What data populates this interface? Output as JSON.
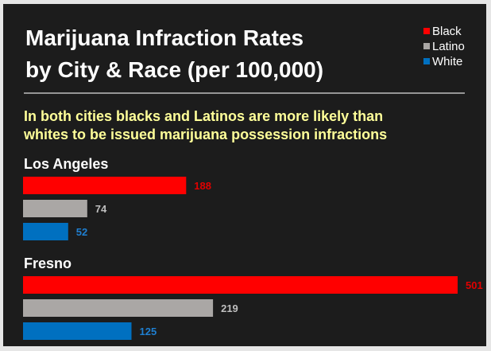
{
  "colors": {
    "background": "#1c1c1c",
    "frame": "#e6e6e6",
    "title": "#ffffff",
    "subtitle": "#ffff99",
    "divider": "#bfbfbf"
  },
  "chart_data": {
    "type": "bar",
    "orientation": "horizontal",
    "title_lines": [
      "Marijuana Infraction Rates",
      "by City & Race (per 100,000)"
    ],
    "subtitle_lines": [
      "In both cities blacks and Latinos are more likely than",
      "whites to be issued marijuana possession infractions"
    ],
    "legend": {
      "placement": "top-right",
      "entries": [
        {
          "name": "Black",
          "color": "#ff0000"
        },
        {
          "name": "Latino",
          "color": "#aaa7a5"
        },
        {
          "name": "White",
          "color": "#0070c0"
        }
      ]
    },
    "categories": [
      "Los Angeles",
      "Fresno"
    ],
    "series": [
      {
        "name": "Black",
        "color": "#ff0000",
        "label_color": "#e10000",
        "values": [
          188,
          501
        ]
      },
      {
        "name": "Latino",
        "color": "#aaa7a5",
        "label_color": "#bfbfbf",
        "values": [
          74,
          219
        ]
      },
      {
        "name": "White",
        "color": "#0070c0",
        "label_color": "#1f7fd0",
        "values": [
          52,
          125
        ]
      }
    ],
    "xlim": [
      0,
      501
    ],
    "grid": false,
    "show_axes": false,
    "value_labels": true
  }
}
